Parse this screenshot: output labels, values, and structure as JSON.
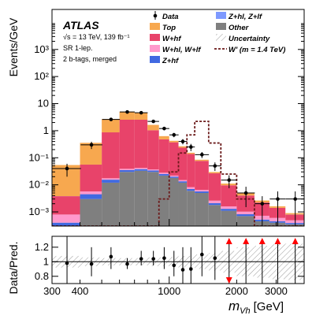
{
  "chart_data": {
    "type": "histogram",
    "annotations": {
      "experiment": "ATLAS",
      "energy_lumi": "√s = 13 TeV, 139 fb⁻¹",
      "region": "SR 1-lep.",
      "category": "2 b-tags, merged"
    },
    "top_panel": {
      "ylabel": "Events/GeV",
      "yscale": "log",
      "ylim": [
        0.0003,
        30000
      ],
      "y_tick_labels": [
        "10⁻³",
        "10⁻²",
        "10⁻¹",
        "1",
        "10",
        "10²",
        "10³"
      ]
    },
    "bottom_panel": {
      "ylabel": "Data/Pred.",
      "ylim": [
        0.7,
        1.35
      ],
      "y_tick_labels": [
        "0.8",
        "1",
        "1.2"
      ]
    },
    "xaxis": {
      "label_main": "m",
      "label_sub": "Vh",
      "label_unit": "[GeV]",
      "scale": "log",
      "xlim": [
        300,
        4000
      ],
      "tick_labels": [
        "300",
        "400",
        "1000",
        "2000",
        "3000"
      ]
    },
    "bin_edges": [
      300,
      400,
      500,
      600,
      700,
      800,
      900,
      1000,
      1100,
      1200,
      1300,
      1500,
      1700,
      2000,
      2400,
      2800,
      3300,
      4000
    ],
    "series": [
      {
        "name": "Other",
        "color": "#7f7f7f",
        "values": [
          0.0003,
          0.003,
          0.012,
          0.03,
          0.033,
          0.03,
          0.022,
          0.018,
          0.012,
          0.006,
          0.005,
          0.0018,
          0.0011,
          0.0007,
          0.00045,
          0.0004,
          0.00035
        ]
      },
      {
        "name": "Z+hf",
        "color": "#4169e1",
        "values": [
          0.0001,
          0.0015,
          0.0035,
          0.005,
          0.005,
          0.004,
          0.003,
          0.002,
          0.0015,
          0.001,
          0.0007,
          0.0003,
          0.0002,
          0.00012,
          7e-05,
          5e-05,
          4e-05
        ]
      },
      {
        "name": "W+hl, W+lf",
        "color": "#ff99cc",
        "values": [
          0.0004,
          0.0012,
          0.002,
          0.004,
          0.004,
          0.003,
          0.003,
          0.002,
          0.0015,
          0.0012,
          0.0008,
          0.0005,
          0.0003,
          0.0002,
          0.0002,
          0.00015,
          0.0001
        ]
      },
      {
        "name": "W+hf",
        "color": "#e8436a",
        "values": [
          0.003,
          0.05,
          0.85,
          2.5,
          2.5,
          1.0,
          0.45,
          0.35,
          0.22,
          0.13,
          0.07,
          0.024,
          0.008,
          0.003,
          0.0015,
          0.0008,
          0.0003
        ]
      },
      {
        "name": "Z+hl, Z+lf",
        "color": "#7e99ff",
        "values": [
          2e-05,
          0.0001,
          0.0002,
          0.0003,
          0.0003,
          0.0002,
          0.0002,
          0.00015,
          0.0001,
          0.0001,
          6e-05,
          3e-05,
          2e-05,
          1e-05,
          1e-05,
          1e-05,
          1e-05
        ]
      },
      {
        "name": "Top",
        "color": "#f7a84f",
        "values": [
          0.05,
          0.3,
          1.8,
          2.5,
          2.0,
          0.6,
          0.15,
          0.05,
          0.03,
          0.015,
          0.008,
          0.003,
          0.0015,
          0.0008,
          0.0004,
          0.0002,
          0.0001
        ]
      }
    ],
    "signal": {
      "name": "W' (m = 1.4 TeV)",
      "color": "#6b1a1a",
      "values": [
        0.0001,
        0.0001,
        0.0001,
        0.0001,
        0.0001,
        0.0001,
        0.003,
        0.03,
        0.15,
        0.7,
        2.2,
        0.35,
        0.025,
        0.003,
        0.0001,
        0.0001,
        0.0001
      ]
    },
    "data": {
      "name": "Data",
      "x": [
        350,
        450,
        550,
        650,
        750,
        850,
        950,
        1050,
        1150,
        1250,
        1400,
        1600,
        1850,
        2200,
        2600,
        3050,
        3650
      ],
      "y": [
        0.04,
        0.3,
        2.6,
        4.9,
        4.6,
        2.2,
        1.2,
        0.7,
        0.4,
        0.25,
        0.13,
        0.05,
        0.015,
        0.005,
        0.002,
        0.003,
        0.003
      ],
      "yerr_rel": [
        0.5,
        0.3,
        0.1,
        0.07,
        0.07,
        0.1,
        0.14,
        0.18,
        0.22,
        0.3,
        0.25,
        0.35,
        0.5,
        0.7,
        0.9,
        0.9,
        0.9
      ]
    },
    "ratio": {
      "x": [
        350,
        450,
        550,
        650,
        750,
        850,
        950,
        1050,
        1150,
        1250,
        1400,
        1600,
        1850,
        2200,
        2600,
        3050,
        3650
      ],
      "values": [
        0.98,
        0.97,
        1.07,
        0.97,
        1.04,
        1.04,
        1.05,
        0.95,
        0.89,
        0.9,
        1.1,
        1.05,
        1.4,
        1.4,
        1.4,
        1.4,
        1.4
      ],
      "lo": [
        0.6,
        0.8,
        0.9,
        0.9,
        0.95,
        0.95,
        0.9,
        0.8,
        0.7,
        0.7,
        0.8,
        0.75,
        0.6,
        0.7,
        0.6,
        0.6,
        0.6
      ],
      "hi": [
        1.4,
        1.2,
        1.2,
        1.05,
        1.15,
        1.15,
        1.2,
        1.15,
        1.2,
        1.2,
        1.35,
        1.35,
        1.4,
        1.4,
        1.4,
        1.4,
        1.4
      ],
      "off_scale_up": [
        false,
        false,
        false,
        false,
        false,
        false,
        false,
        false,
        false,
        false,
        false,
        false,
        true,
        true,
        true,
        true,
        true
      ],
      "band_halfwidth": [
        0.08,
        0.06,
        0.05,
        0.05,
        0.05,
        0.06,
        0.06,
        0.07,
        0.08,
        0.08,
        0.1,
        0.12,
        0.15,
        0.2,
        0.22,
        0.24,
        0.25
      ]
    },
    "legend": {
      "placement": "top-right",
      "entries": [
        {
          "label": "Data",
          "kind": "marker",
          "color": "#000000"
        },
        {
          "label": "Z+hl, Z+lf",
          "kind": "box",
          "color": "#7e99ff"
        },
        {
          "label": "Top",
          "kind": "box",
          "color": "#f7a84f"
        },
        {
          "label": "Other",
          "kind": "box",
          "color": "#7f7f7f"
        },
        {
          "label": "W+hf",
          "kind": "box",
          "color": "#e8436a"
        },
        {
          "label": "Uncertainty",
          "kind": "hatch",
          "color": "#999999"
        },
        {
          "label": "W+hl, W+lf",
          "kind": "box",
          "color": "#ff99cc"
        },
        {
          "label": "W' (m = 1.4 TeV)",
          "kind": "dashed",
          "color": "#6b1a1a"
        },
        {
          "label": "Z+hf",
          "kind": "box",
          "color": "#4169e1"
        }
      ]
    }
  }
}
